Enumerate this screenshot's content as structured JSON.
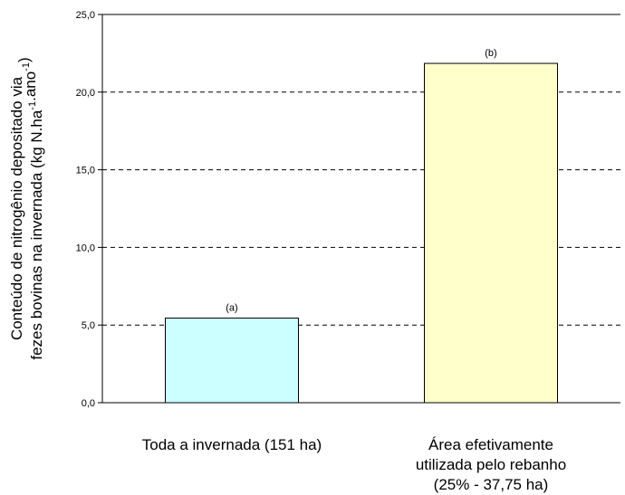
{
  "chart_data": {
    "type": "bar",
    "categories": [
      [
        "Toda a invernada (151 ha)"
      ],
      [
        "Área efetivamente",
        "utilizada pelo rebanho",
        "(25% - 37,75 ha)"
      ]
    ],
    "values": [
      5.45,
      21.85
    ],
    "bar_labels": [
      "(a)",
      "(b)"
    ],
    "bar_colors": [
      "#ccffff",
      "#ffffcc"
    ],
    "ylabel_lines": [
      "Conteúdo de nitrogênio depositado via",
      "fezes bovinas na invernada (kg N.ha-1.ano-1)"
    ],
    "ylim": [
      0,
      25
    ],
    "yticks": [
      "0,0",
      "5,0",
      "10,0",
      "15,0",
      "20,0",
      "25,0"
    ],
    "grid": "dashed horizontal"
  }
}
